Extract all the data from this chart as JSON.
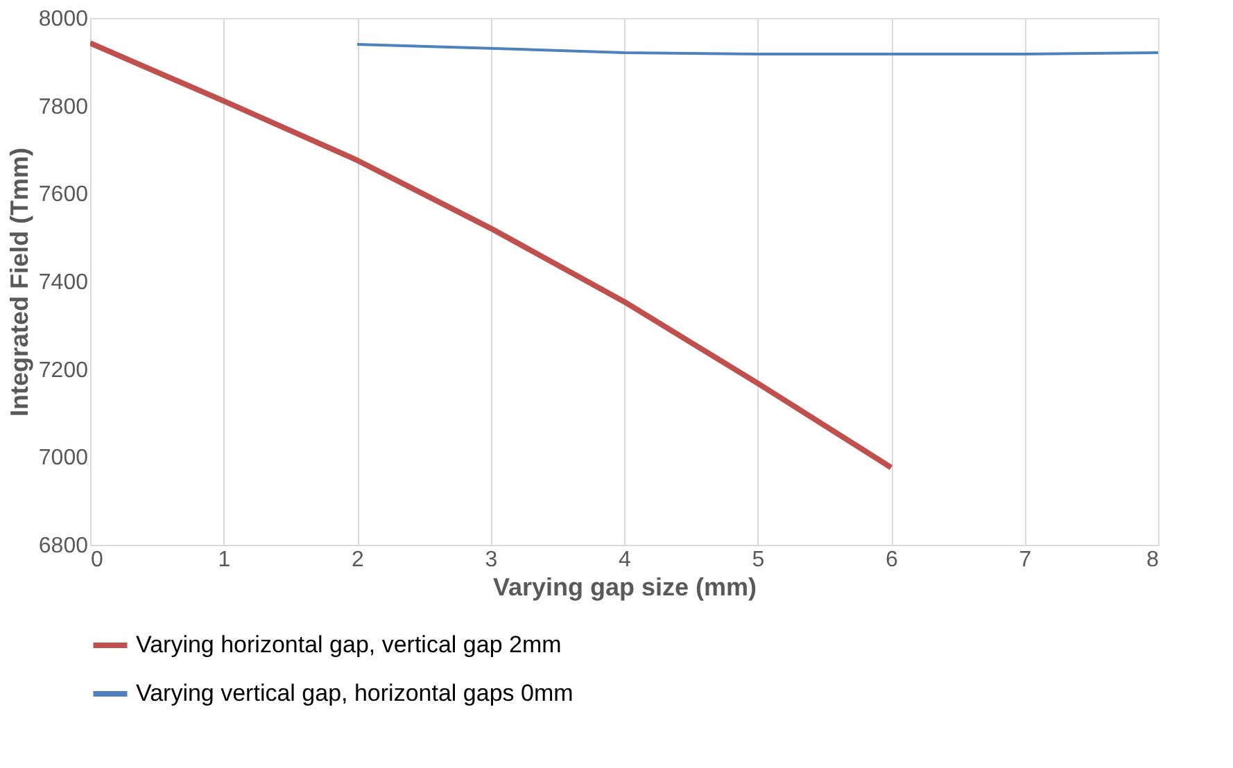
{
  "chart_data": {
    "type": "line",
    "xlabel": "Varying gap size (mm)",
    "ylabel": "Integrated Field (Tmm)",
    "xlim": [
      0,
      8
    ],
    "xticks": [
      0,
      1,
      2,
      3,
      4,
      5,
      6,
      7,
      8
    ],
    "ylim": [
      6800,
      8000
    ],
    "yticks": [
      6800,
      7000,
      7200,
      7400,
      7600,
      7800,
      8000
    ],
    "grid": "x",
    "legend": "bottom",
    "marker": "none",
    "line_style": "solid",
    "series": [
      {
        "name": "Varying horizontal gap, vertical gap 2mm",
        "color": "#c0504d",
        "x": [
          0,
          1,
          2,
          3,
          4,
          5,
          6
        ],
        "values": [
          7943,
          7811,
          7676,
          7521,
          7354,
          7168,
          6976
        ]
      },
      {
        "name": "Varying vertical gap, horizontal gaps 0mm",
        "color": "#4f81bd",
        "x": [
          2,
          3,
          4,
          5,
          6,
          7,
          8
        ],
        "values": [
          7940,
          7931,
          7921,
          7918,
          7918,
          7918,
          7921
        ]
      }
    ]
  }
}
